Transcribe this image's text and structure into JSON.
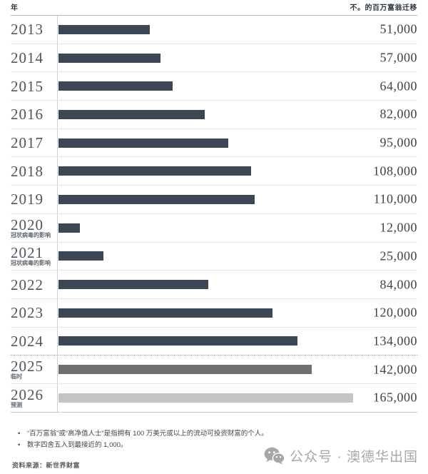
{
  "header": {
    "left_label": "年",
    "right_label": "不。的百万富翁迁移"
  },
  "chart_data": {
    "type": "bar",
    "orientation": "horizontal",
    "title": "",
    "xlabel": "不。的百万富翁迁移",
    "ylabel": "年",
    "xlim": [
      0,
      165000
    ],
    "grid": "row-separator-lines",
    "legend": "none",
    "categories": [
      "2013",
      "2014",
      "2015",
      "2016",
      "2017",
      "2018",
      "2019",
      "2020",
      "2021",
      "2022",
      "2023",
      "2024",
      "2025",
      "2026"
    ],
    "values": [
      51000,
      57000,
      64000,
      82000,
      95000,
      108000,
      110000,
      12000,
      25000,
      84000,
      120000,
      134000,
      142000,
      165000
    ],
    "value_labels": [
      "51,000",
      "57,000",
      "64,000",
      "82,000",
      "95,000",
      "108,000",
      "110,000",
      "12,000",
      "25,000",
      "84,000",
      "120,000",
      "134,000",
      "142,000",
      "165,000"
    ],
    "sub_labels": [
      "",
      "",
      "",
      "",
      "",
      "",
      "",
      "冠状病毒的影响",
      "冠状病毒的影响",
      "",
      "",
      "",
      "临时",
      "预测"
    ],
    "bar_colors": [
      "#3b4754",
      "#3b4754",
      "#3b4754",
      "#3b4754",
      "#3b4754",
      "#3b4754",
      "#3b4754",
      "#3b4754",
      "#3b4754",
      "#3b4754",
      "#3b4754",
      "#3b4754",
      "#6f6f6f",
      "#c4c4c4"
    ],
    "dotted_divider_after_index": 11
  },
  "footnotes": [
    "“百万富翁”或“高净值人士”是指拥有 100 万美元或以上的流动可投资财富的个人。",
    "数字四舍五入到最接近的 1,000。"
  ],
  "source": "资料来源：新世界财富",
  "watermark": {
    "icon": "wechat-icon",
    "text": "公众号 · 澳德华出国"
  },
  "colors": {
    "bar_default": "#3b4754",
    "bar_provisional": "#6f6f6f",
    "bar_forecast": "#c4c4c4",
    "divider": "#e4e5e6",
    "watermark_gray": "#a7a7a7"
  }
}
